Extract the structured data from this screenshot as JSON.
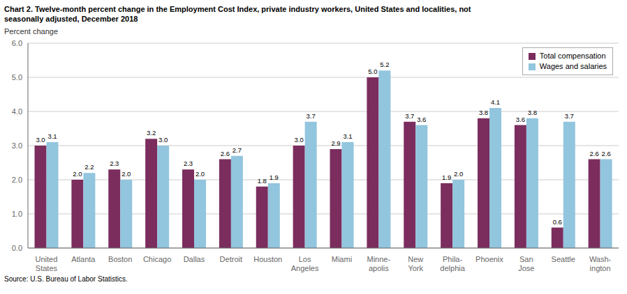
{
  "chart_data": {
    "type": "bar",
    "title": "Chart 2. Twelve-month percent change in the Employment Cost Index, private industry workers, United States and localities, not\nseasonally adjusted, December 2018",
    "ylabel": "Percent change",
    "source": "Source: U.S. Bureau of Labor Statistics.",
    "categories": [
      "United\nStates",
      "Atlanta",
      "Boston",
      "Chicago",
      "Dallas",
      "Detroit",
      "Houston",
      "Los\nAngeles",
      "Miami",
      "Minne-\napolis",
      "New\nYork",
      "Phila-\ndelphia",
      "Phoenix",
      "San\nJose",
      "Seattle",
      "Wash-\nington"
    ],
    "series": [
      {
        "name": "Total compensation",
        "color": "#7B2D5E",
        "values": [
          3.0,
          2.0,
          2.3,
          3.2,
          2.3,
          2.6,
          1.8,
          3.0,
          2.9,
          5.0,
          3.7,
          1.9,
          3.8,
          3.6,
          0.6,
          2.6
        ],
        "value_labels": [
          "3.0",
          "2.0",
          "2.3",
          "3.2",
          "2.3",
          "2.6",
          "1.8",
          "3.0",
          "2.9",
          "5.0",
          "3.7",
          "1.9",
          "3.8",
          "3.6",
          "0.6",
          "2.6"
        ]
      },
      {
        "name": "Wages and salaries",
        "color": "#92C5DE",
        "values": [
          3.1,
          2.2,
          2.0,
          3.0,
          2.0,
          2.7,
          1.9,
          3.7,
          3.1,
          5.2,
          3.6,
          2.0,
          4.1,
          3.8,
          3.7,
          2.6
        ],
        "value_labels": [
          "3.1",
          "2.2",
          "2.0",
          "3.0",
          "2.0",
          "2.7",
          "1.9",
          "3.7",
          "3.1",
          "5.2",
          "3.6",
          "2.0",
          "4.1",
          "3.8",
          "3.7",
          "2.6"
        ]
      }
    ],
    "ylim": [
      0.0,
      6.0
    ],
    "yticks": [
      {
        "value": 0,
        "label": "0.0"
      },
      {
        "value": 1,
        "label": "1.0"
      },
      {
        "value": 2,
        "label": "2.0"
      },
      {
        "value": 3,
        "label": "3.0"
      },
      {
        "value": 4,
        "label": "4.0"
      },
      {
        "value": 5,
        "label": "5.0"
      },
      {
        "value": 6,
        "label": "6.0"
      }
    ],
    "grid": true,
    "legend": "upper right",
    "data_labels": true
  }
}
